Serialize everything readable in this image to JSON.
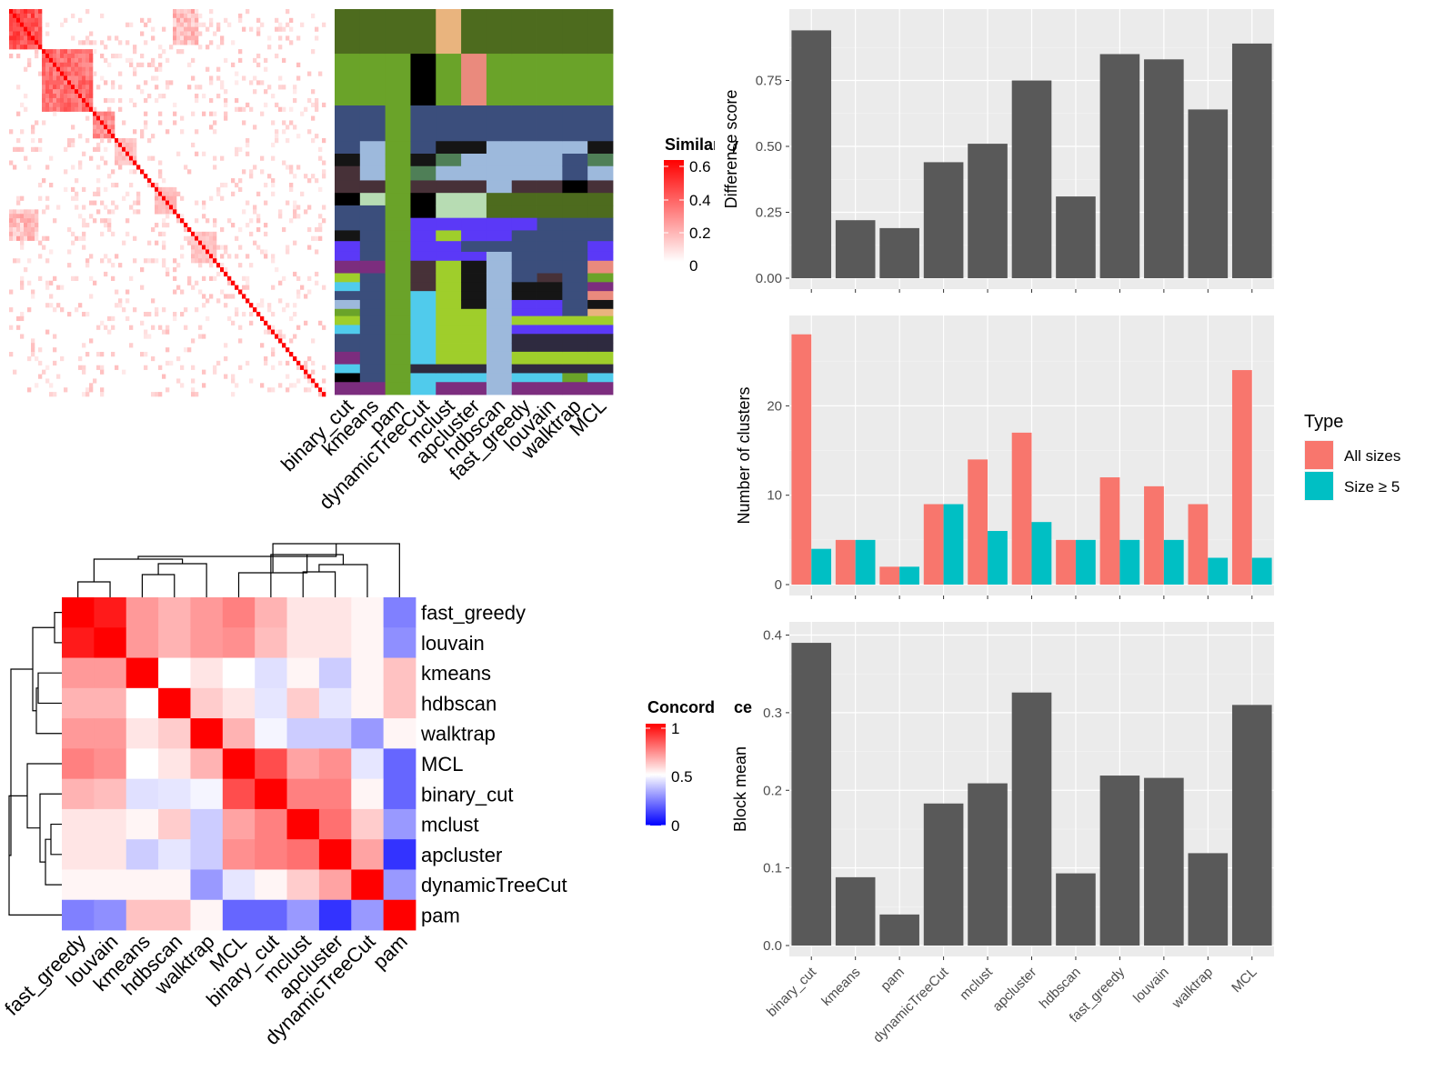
{
  "methods": [
    "binary_cut",
    "kmeans",
    "pam",
    "dynamicTreeCut",
    "mclust",
    "apcluster",
    "hdbscan",
    "fast_greedy",
    "louvain",
    "walktrap",
    "MCL"
  ],
  "similarity_legend": {
    "title": "Similarity",
    "ticks": [
      "0.6",
      "0.4",
      "0.2",
      "0"
    ],
    "color_high": "#ff0000",
    "color_low": "#ffffff"
  },
  "concordance_legend": {
    "title": "Concordance",
    "ticks": [
      "1",
      "0.5",
      "0"
    ],
    "color_high": "#ff0000",
    "color_mid": "#ffffff",
    "color_low": "#0000ff"
  },
  "concordance_rows": [
    "fast_greedy",
    "louvain",
    "kmeans",
    "hdbscan",
    "walktrap",
    "MCL",
    "binary_cut",
    "mclust",
    "apcluster",
    "dynamicTreeCut",
    "pam"
  ],
  "type_legend": {
    "title": "Type",
    "items": [
      {
        "label": "All sizes",
        "color": "#f8766d"
      },
      {
        "label": "Size ≥ 5",
        "color": "#00bfc4"
      }
    ]
  },
  "chart_data": [
    {
      "type": "heatmap",
      "name": "similarity-heatmap",
      "note": "term similarity matrix, ~90 terms, strong diagonal",
      "legend_range": [
        0,
        0.65
      ]
    },
    {
      "type": "heatmap",
      "name": "cluster-assignment-heatmap",
      "columns": [
        "binary_cut",
        "kmeans",
        "pam",
        "dynamicTreeCut",
        "mclust",
        "apcluster",
        "hdbscan",
        "fast_greedy",
        "louvain",
        "walktrap",
        "MCL"
      ]
    },
    {
      "type": "heatmap",
      "name": "concordance-heatmap",
      "rows": [
        "fast_greedy",
        "louvain",
        "kmeans",
        "hdbscan",
        "walktrap",
        "MCL",
        "binary_cut",
        "mclust",
        "apcluster",
        "dynamicTreeCut",
        "pam"
      ],
      "columns": [
        "fast_greedy",
        "louvain",
        "kmeans",
        "hdbscan",
        "walktrap",
        "MCL",
        "binary_cut",
        "mclust",
        "apcluster",
        "dynamicTreeCut",
        "pam"
      ],
      "values": [
        [
          1,
          0.95,
          0.7,
          0.65,
          0.7,
          0.75,
          0.65,
          0.55,
          0.55,
          0.52,
          0.25
        ],
        [
          0.95,
          1,
          0.7,
          0.65,
          0.7,
          0.72,
          0.63,
          0.55,
          0.55,
          0.52,
          0.28
        ],
        [
          0.7,
          0.7,
          1,
          0.5,
          0.55,
          0.5,
          0.44,
          0.52,
          0.4,
          0.52,
          0.62
        ],
        [
          0.65,
          0.65,
          0.5,
          1,
          0.6,
          0.55,
          0.45,
          0.6,
          0.45,
          0.52,
          0.62
        ],
        [
          0.7,
          0.7,
          0.55,
          0.6,
          1,
          0.65,
          0.48,
          0.4,
          0.4,
          0.3,
          0.52
        ],
        [
          0.75,
          0.72,
          0.5,
          0.55,
          0.65,
          1,
          0.85,
          0.68,
          0.72,
          0.45,
          0.2
        ],
        [
          0.65,
          0.63,
          0.44,
          0.45,
          0.48,
          0.85,
          1,
          0.75,
          0.75,
          0.52,
          0.2
        ],
        [
          0.55,
          0.55,
          0.52,
          0.6,
          0.4,
          0.68,
          0.75,
          1,
          0.78,
          0.6,
          0.3
        ],
        [
          0.55,
          0.55,
          0.4,
          0.45,
          0.4,
          0.72,
          0.75,
          0.78,
          1,
          0.68,
          0.1
        ],
        [
          0.52,
          0.52,
          0.52,
          0.52,
          0.3,
          0.45,
          0.52,
          0.6,
          0.68,
          1,
          0.3
        ],
        [
          0.25,
          0.28,
          0.62,
          0.62,
          0.52,
          0.2,
          0.2,
          0.3,
          0.1,
          0.3,
          1
        ]
      ],
      "legend_range": [
        0,
        1
      ]
    },
    {
      "type": "bar",
      "name": "difference-score",
      "categories": [
        "binary_cut",
        "kmeans",
        "pam",
        "dynamicTreeCut",
        "mclust",
        "apcluster",
        "hdbscan",
        "fast_greedy",
        "louvain",
        "walktrap",
        "MCL"
      ],
      "values": [
        0.94,
        0.22,
        0.19,
        0.44,
        0.51,
        0.75,
        0.31,
        0.85,
        0.83,
        0.64,
        0.89
      ],
      "ylabel": "Difference score",
      "yticks": [
        "0.00",
        "0.25",
        "0.50",
        "0.75"
      ],
      "ylim": [
        0,
        1.0
      ]
    },
    {
      "type": "bar",
      "name": "number-of-clusters",
      "categories": [
        "binary_cut",
        "kmeans",
        "pam",
        "dynamicTreeCut",
        "mclust",
        "apcluster",
        "hdbscan",
        "fast_greedy",
        "louvain",
        "walktrap",
        "MCL"
      ],
      "series": [
        {
          "name": "All sizes",
          "values": [
            28,
            5,
            2,
            9,
            14,
            17,
            5,
            12,
            11,
            9,
            24
          ]
        },
        {
          "name": "Size ≥ 5",
          "values": [
            4,
            5,
            2,
            9,
            6,
            7,
            5,
            5,
            5,
            3,
            3
          ]
        }
      ],
      "ylabel": "Number of clusters",
      "yticks": [
        "0",
        "10",
        "20"
      ],
      "ylim": [
        0,
        29.5
      ],
      "legend": "right"
    },
    {
      "type": "bar",
      "name": "block-mean",
      "categories": [
        "binary_cut",
        "kmeans",
        "pam",
        "dynamicTreeCut",
        "mclust",
        "apcluster",
        "hdbscan",
        "fast_greedy",
        "louvain",
        "walktrap",
        "MCL"
      ],
      "values": [
        0.39,
        0.088,
        0.04,
        0.183,
        0.209,
        0.326,
        0.093,
        0.219,
        0.216,
        0.119,
        0.31
      ],
      "ylabel": "Block mean",
      "yticks": [
        "0.0",
        "0.1",
        "0.2",
        "0.3",
        "0.4"
      ],
      "ylim": [
        0,
        0.41
      ]
    }
  ]
}
